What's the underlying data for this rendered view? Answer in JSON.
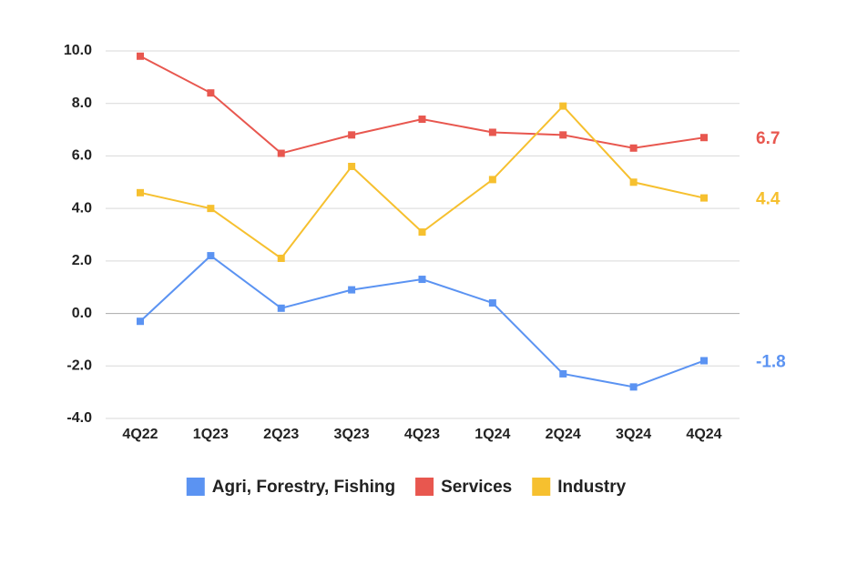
{
  "chart_data": {
    "type": "line",
    "categories": [
      "4Q22",
      "1Q23",
      "2Q23",
      "3Q23",
      "4Q23",
      "1Q24",
      "2Q24",
      "3Q24",
      "4Q24"
    ],
    "series": [
      {
        "name": "Agri, Forestry, Fishing",
        "color": "#5b93f2",
        "values": [
          -0.3,
          2.2,
          0.2,
          0.9,
          1.3,
          0.4,
          -2.3,
          -2.8,
          -1.8
        ],
        "value_labels": [
          null,
          null,
          null,
          null,
          null,
          null,
          null,
          null,
          "-1.8"
        ]
      },
      {
        "name": "Services",
        "color": "#e8574f",
        "values": [
          9.8,
          8.4,
          6.1,
          6.8,
          7.4,
          6.9,
          6.8,
          6.3,
          6.7
        ],
        "value_labels": [
          null,
          null,
          null,
          null,
          null,
          null,
          null,
          null,
          "6.7"
        ]
      },
      {
        "name": "Industry",
        "color": "#f6c02f",
        "values": [
          4.6,
          4.0,
          2.1,
          5.6,
          3.1,
          5.1,
          7.9,
          5.0,
          4.4
        ],
        "value_labels": [
          null,
          null,
          null,
          null,
          null,
          null,
          null,
          null,
          "4.4"
        ]
      }
    ],
    "ylim": [
      -4,
      10
    ],
    "yticks": [
      {
        "value": -4,
        "label": "-4.0"
      },
      {
        "value": -2,
        "label": "-2.0"
      },
      {
        "value": 0,
        "label": "0.0"
      },
      {
        "value": 2,
        "label": "2.0"
      },
      {
        "value": 4,
        "label": "4.0"
      },
      {
        "value": 6,
        "label": "6.0"
      },
      {
        "value": 8,
        "label": "8.0"
      },
      {
        "value": 10,
        "label": "10.0"
      }
    ],
    "grid": true,
    "legend": "bottom"
  }
}
